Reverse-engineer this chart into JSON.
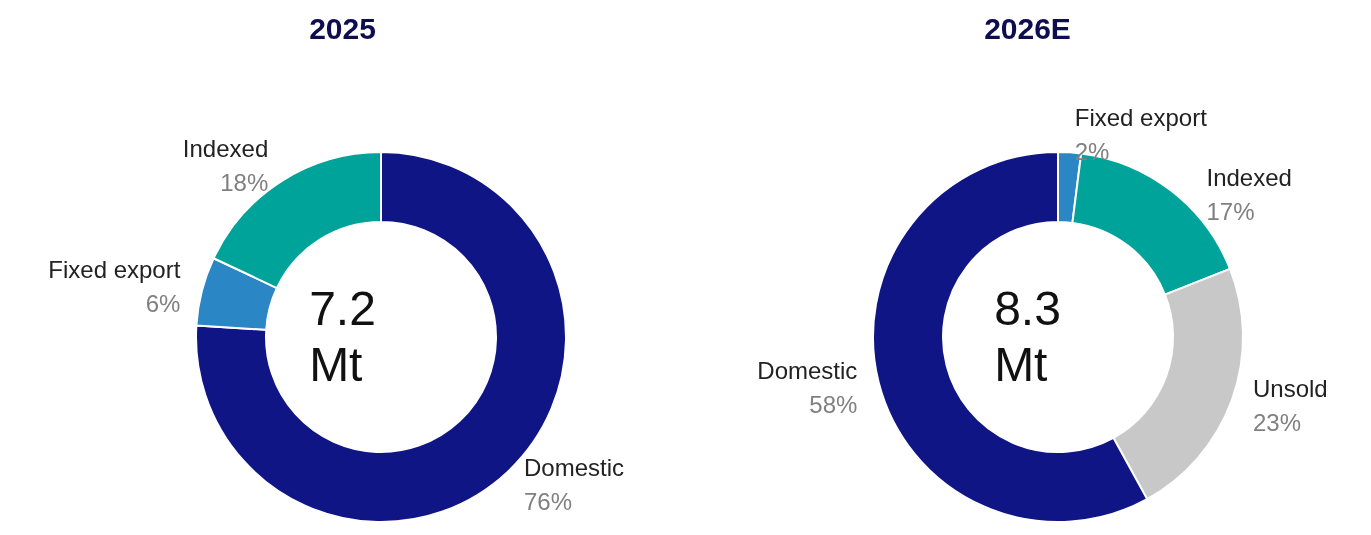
{
  "chart_data": [
    {
      "type": "donut",
      "title": "2025",
      "categories": [
        "Domestic",
        "Fixed export",
        "Indexed"
      ],
      "values": [
        76,
        6,
        18
      ],
      "value_labels": [
        "76%",
        "6%",
        "18%"
      ],
      "colors": [
        "#0f1585",
        "#2a86c4",
        "#00a39a"
      ],
      "legend": false,
      "annotations": [
        "7.2\nMt"
      ]
    },
    {
      "type": "donut",
      "title": "2026E",
      "categories": [
        "Fixed export",
        "Indexed",
        "Unsold",
        "Domestic"
      ],
      "values": [
        2,
        17,
        23,
        58
      ],
      "value_labels": [
        "2%",
        "17%",
        "23%",
        "58%"
      ],
      "colors": [
        "#2a86c4",
        "#00a39a",
        "#c8c8c8",
        "#0f1585"
      ],
      "legend": false,
      "annotations": [
        "8.3\nMt"
      ]
    }
  ]
}
